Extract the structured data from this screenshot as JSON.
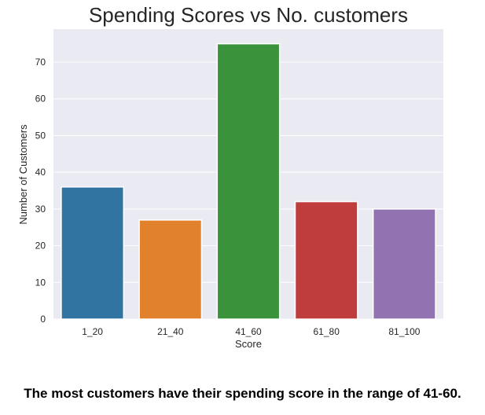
{
  "chart_data": {
    "type": "bar",
    "title": "Spending Scores vs No. customers",
    "xlabel": "Score",
    "ylabel": "Number of Customers",
    "categories": [
      "1_20",
      "21_40",
      "41_60",
      "61_80",
      "81_100"
    ],
    "values": [
      36,
      27,
      75,
      32,
      30
    ],
    "colors": [
      "#3274a1",
      "#e1812c",
      "#3a923a",
      "#c03d3e",
      "#9372b2"
    ],
    "ylim": [
      0,
      79
    ],
    "yticks": [
      0,
      10,
      20,
      30,
      40,
      50,
      60,
      70
    ],
    "grid": true,
    "background": "#eaeaf2"
  },
  "caption": "The most customers have their spending score in the range of 41-60."
}
